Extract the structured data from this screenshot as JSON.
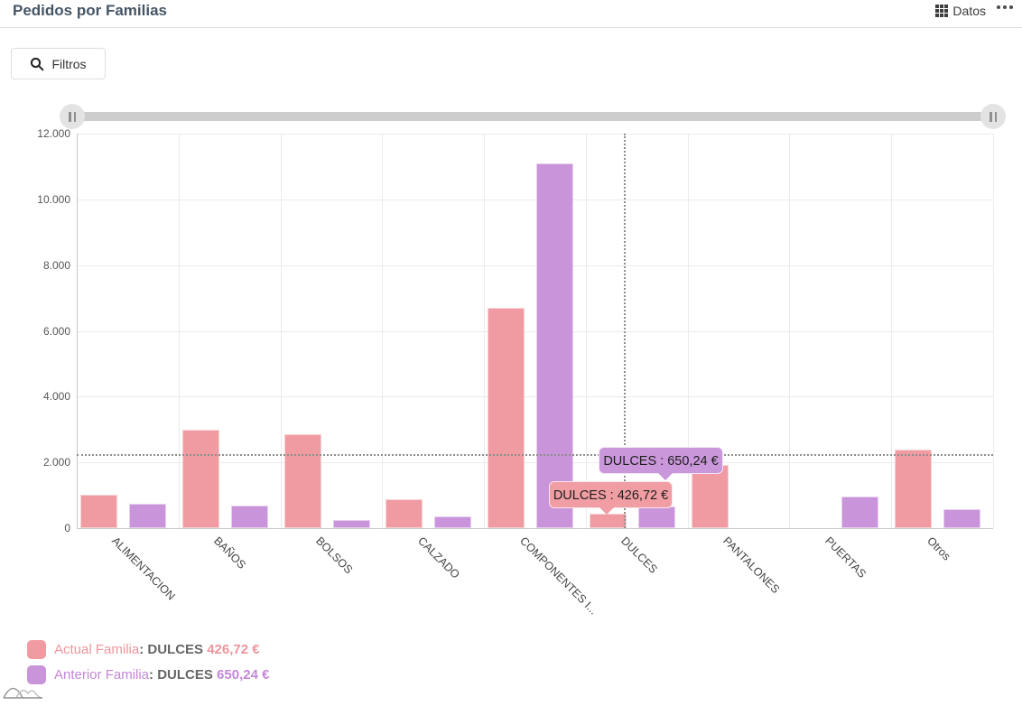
{
  "header": {
    "title": "Pedidos por Familias",
    "datos_label": "Datos"
  },
  "toolbar": {
    "filtros_label": "Filtros"
  },
  "colors": {
    "title": "#455565",
    "actual_series": "#f09ba1",
    "anterior_series": "#c994da",
    "actual_text": "#ef949c",
    "anterior_text": "#c587d7",
    "tooltip_actual_bg": "#f09da3",
    "tooltip_anterior_bg": "#ca97da"
  },
  "chart_data": {
    "type": "bar",
    "title": "Pedidos por Familias",
    "categories": [
      "ALIMENTACION",
      "BAÑOS",
      "BOLSOS",
      "CALZADO",
      "COMPONENTES I...",
      "DULCES",
      "PANTALONES",
      "PUERTAS",
      "Otros"
    ],
    "series": [
      {
        "name": "Actual Familia",
        "color": "#f09ba1",
        "values": [
          1010,
          3000,
          2850,
          870,
          6700,
          426.72,
          1930,
          0,
          2400
        ]
      },
      {
        "name": "Anterior Familia",
        "color": "#c994da",
        "values": [
          730,
          690,
          240,
          360,
          11100,
          650.24,
          0,
          960,
          580
        ]
      }
    ],
    "xlabel": "",
    "ylabel": "",
    "ylim": [
      0,
      12000
    ],
    "y_ticks": [
      "0",
      "2.000",
      "4.000",
      "6.000",
      "8.000",
      "10.000",
      "12.000"
    ],
    "grid": true,
    "legend_position": "bottom-left",
    "crosshair": {
      "category_index": 5,
      "x_fraction": 0.37,
      "y_value": 2260
    },
    "tooltips": [
      {
        "series": "Actual Familia",
        "text": "DULCES : 426,72 €"
      },
      {
        "series": "Anterior Familia",
        "text": "DULCES : 650,24 €"
      }
    ]
  },
  "legend": {
    "rows": [
      {
        "label": "Actual Familia",
        "sep": ":",
        "category": "DULCES",
        "value": "426,72 €"
      },
      {
        "label": "Anterior Familia",
        "sep": ":",
        "category": "DULCES",
        "value": "650,24 €"
      }
    ]
  }
}
